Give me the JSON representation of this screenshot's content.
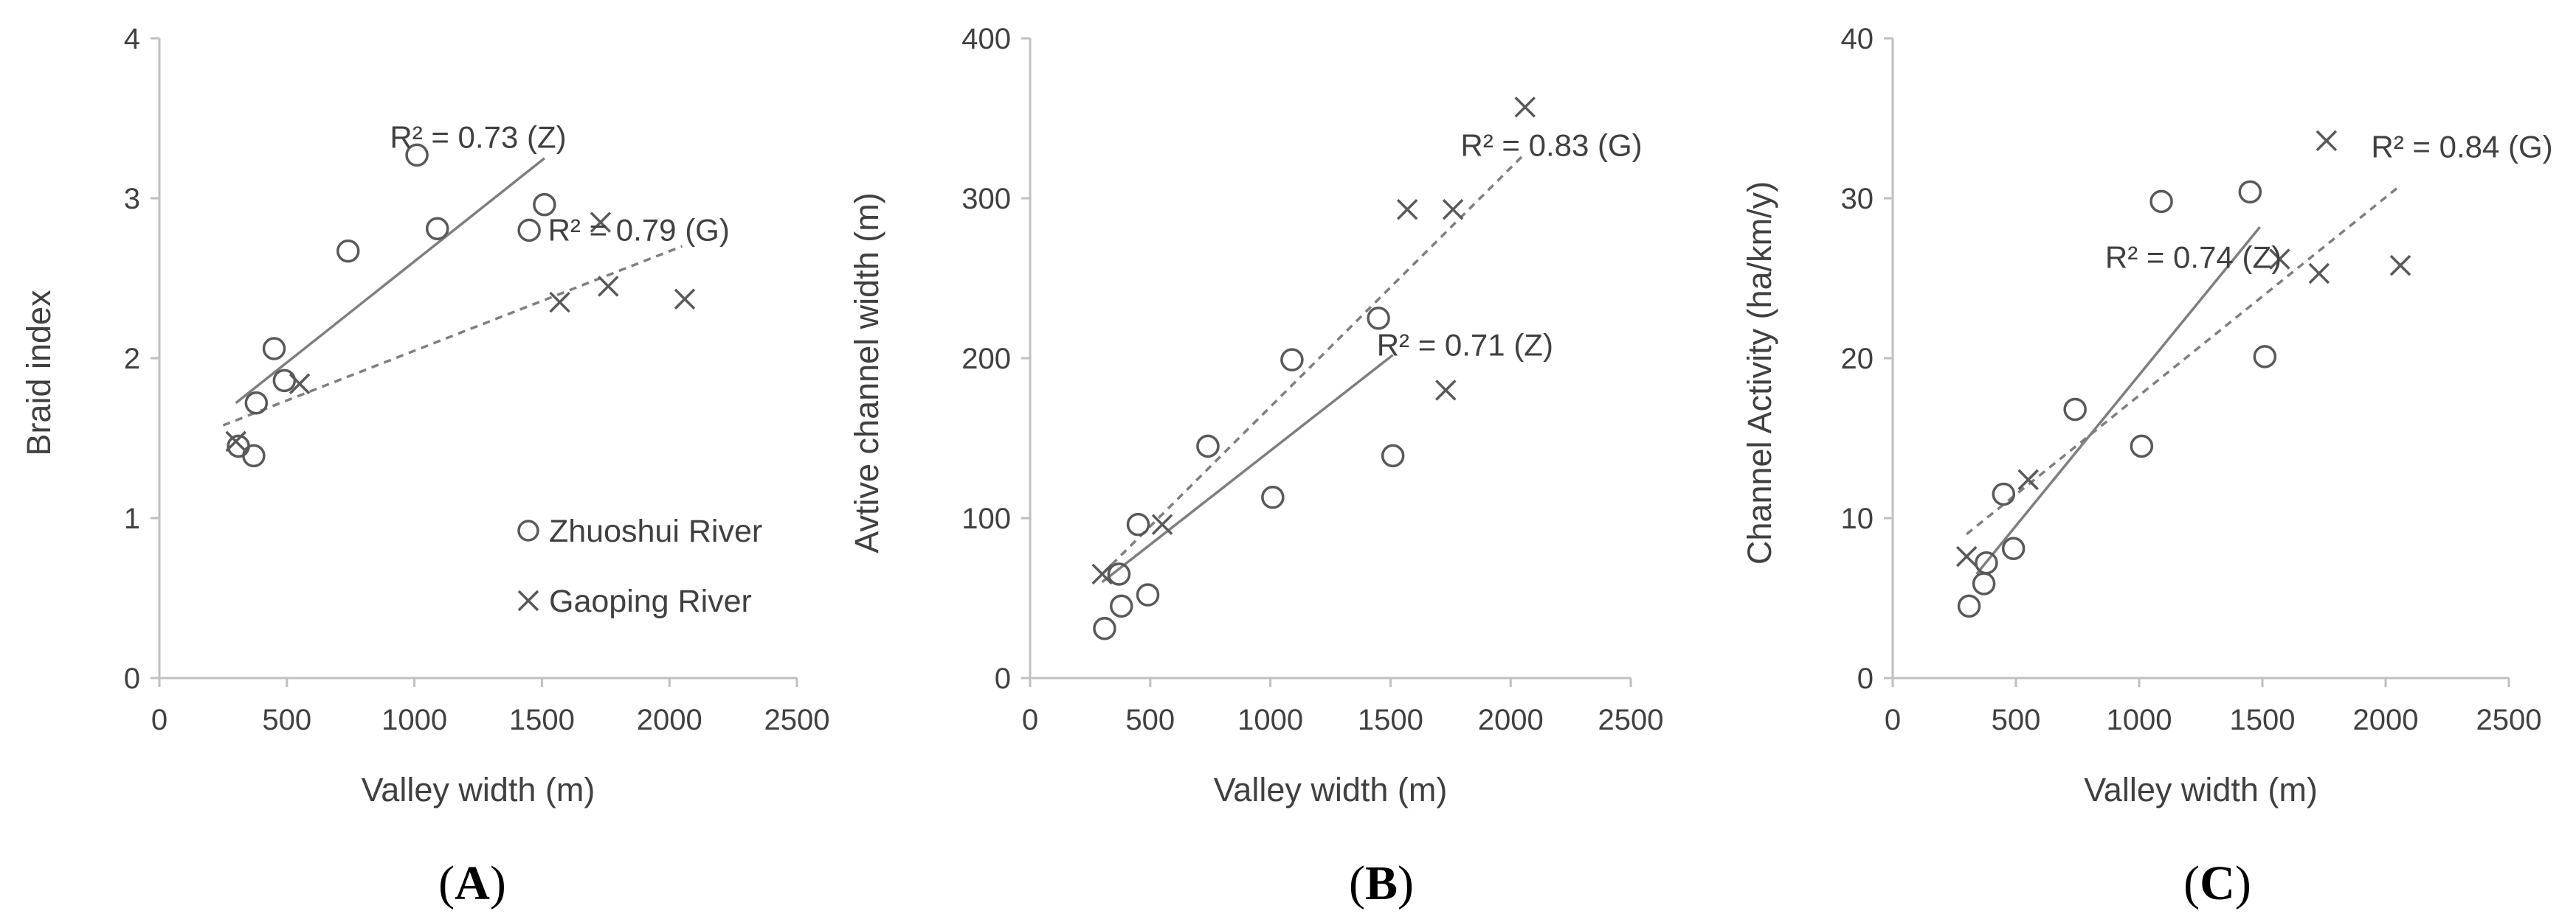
{
  "chart_data": [
    {
      "type": "scatter",
      "panel_label": {
        "open": "(",
        "letter": "A",
        "close": ")"
      },
      "title": "",
      "xlabel": "Valley width (m)",
      "ylabel": "Braid index",
      "xlim": [
        0,
        2500
      ],
      "ylim": [
        0,
        4
      ],
      "xticks": [
        "0",
        "500",
        "1000",
        "1500",
        "2000",
        "2500"
      ],
      "yticks": [
        "0",
        "1",
        "2",
        "3",
        "4"
      ],
      "grid": false,
      "legend": {
        "placement": "bottom-right",
        "entries": [
          "Zhuoshui River",
          "Gaoping River"
        ]
      },
      "series": [
        {
          "name": "Zhuoshui River",
          "marker": "circle",
          "x": [
            310,
            370,
            380,
            450,
            490,
            740,
            1010,
            1090,
            1450,
            1510
          ],
          "y": [
            1.45,
            1.39,
            1.72,
            2.06,
            1.86,
            2.67,
            3.27,
            2.81,
            2.8,
            2.96
          ]
        },
        {
          "name": "Gaoping River",
          "marker": "x",
          "x": [
            300,
            550,
            1570,
            1730,
            1760,
            2060
          ],
          "y": [
            1.48,
            1.84,
            2.35,
            2.85,
            2.45,
            2.37
          ]
        }
      ],
      "trendlines": [
        {
          "series": "Zhuoshui River",
          "style": "solid",
          "x": [
            300,
            1510
          ],
          "y": [
            1.72,
            3.25
          ]
        },
        {
          "series": "Gaoping River",
          "style": "dashed",
          "x": [
            250,
            2050
          ],
          "y": [
            1.58,
            2.7
          ]
        }
      ],
      "annotations": [
        {
          "text": "R² = 0.73 (Z)",
          "x": 1250,
          "y": 3.38
        },
        {
          "text": "R² = 0.79 (G)",
          "x": 1880,
          "y": 2.8
        }
      ]
    },
    {
      "type": "scatter",
      "panel_label": {
        "open": "(",
        "letter": "B",
        "close": ")"
      },
      "title": "",
      "xlabel": "Valley width (m)",
      "ylabel": "Avtive channel width (m)",
      "xlim": [
        0,
        2500
      ],
      "ylim": [
        0,
        400
      ],
      "xticks": [
        "0",
        "500",
        "1000",
        "1500",
        "2000",
        "2500"
      ],
      "yticks": [
        "0",
        "100",
        "200",
        "300",
        "400"
      ],
      "grid": false,
      "series": [
        {
          "name": "Zhuoshui River",
          "marker": "circle",
          "x": [
            310,
            370,
            380,
            450,
            490,
            740,
            1010,
            1090,
            1450,
            1510
          ],
          "y": [
            31,
            65,
            45,
            96,
            52,
            145,
            113,
            199,
            225,
            139
          ]
        },
        {
          "name": "Gaoping River",
          "marker": "x",
          "x": [
            300,
            550,
            1570,
            1730,
            1760,
            2060
          ],
          "y": [
            65,
            96,
            293,
            180,
            293,
            357
          ]
        }
      ],
      "trendlines": [
        {
          "series": "Zhuoshui River",
          "style": "solid",
          "x": [
            300,
            1510
          ],
          "y": [
            60,
            202
          ]
        },
        {
          "series": "Gaoping River",
          "style": "dashed",
          "x": [
            300,
            2060
          ],
          "y": [
            65,
            328
          ]
        }
      ],
      "annotations": [
        {
          "text": "R² = 0.83 (G)",
          "x": 2170,
          "y": 333
        },
        {
          "text": "R² = 0.71 (Z)",
          "x": 1810,
          "y": 208
        }
      ]
    },
    {
      "type": "scatter",
      "panel_label": {
        "open": "(",
        "letter": "C",
        "close": ")"
      },
      "title": "",
      "xlabel": "Valley width (m)",
      "ylabel": "Channel Activity (ha/km/y)",
      "xlim": [
        0,
        2500
      ],
      "ylim": [
        0,
        40
      ],
      "xticks": [
        "0",
        "500",
        "1000",
        "1500",
        "2000",
        "2500"
      ],
      "yticks": [
        "0",
        "10",
        "20",
        "30",
        "40"
      ],
      "grid": false,
      "series": [
        {
          "name": "Zhuoshui River",
          "marker": "circle",
          "x": [
            310,
            370,
            380,
            450,
            490,
            740,
            1010,
            1090,
            1450,
            1510
          ],
          "y": [
            4.5,
            5.9,
            7.2,
            11.5,
            8.1,
            16.8,
            14.5,
            29.8,
            30.4,
            20.1
          ]
        },
        {
          "name": "Gaoping River",
          "marker": "x",
          "x": [
            300,
            550,
            1570,
            1730,
            1760,
            2060
          ],
          "y": [
            7.6,
            12.4,
            26.2,
            25.3,
            33.6,
            25.8
          ]
        }
      ],
      "trendlines": [
        {
          "series": "Zhuoshui River",
          "style": "solid",
          "x": [
            340,
            1490
          ],
          "y": [
            6.5,
            28.2
          ]
        },
        {
          "series": "Gaoping River",
          "style": "dashed",
          "x": [
            300,
            2060
          ],
          "y": [
            9.0,
            30.8
          ]
        }
      ],
      "annotations": [
        {
          "text": "R² = 0.84 (G)",
          "x": 2310,
          "y": 33.2
        },
        {
          "text": "R² = 0.74 (Z)",
          "x": 1220,
          "y": 26.3
        }
      ]
    }
  ]
}
